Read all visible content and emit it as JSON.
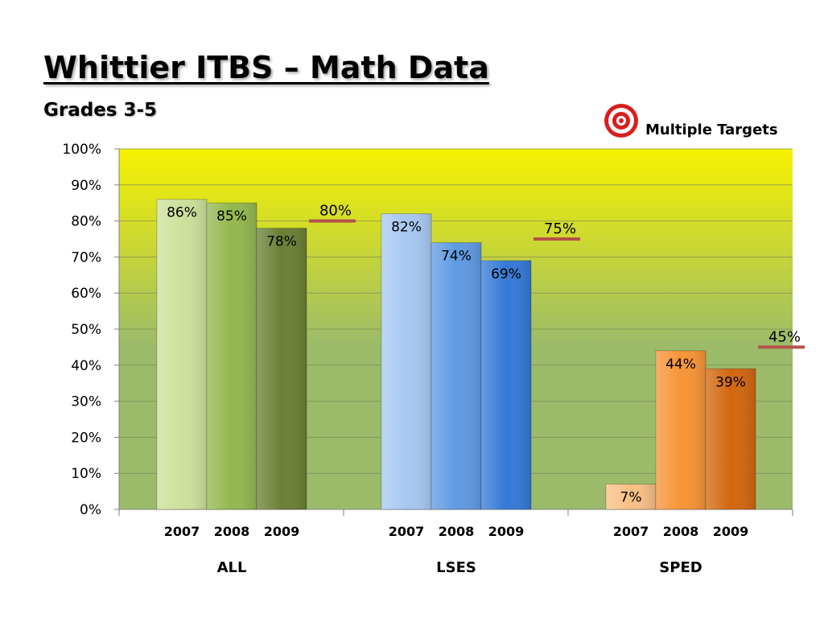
{
  "title": "Whittier ITBS – Math Data",
  "subtitle": "Grades 3-5",
  "legend": {
    "icon": "target-icon",
    "label": "Multiple Targets"
  },
  "chart_data": {
    "type": "bar",
    "ylim": [
      0,
      100
    ],
    "yticks": [
      "0%",
      "10%",
      "20%",
      "30%",
      "40%",
      "50%",
      "60%",
      "70%",
      "80%",
      "90%",
      "100%"
    ],
    "grid": true,
    "groups": [
      {
        "name": "ALL",
        "years": [
          "2007",
          "2008",
          "2009"
        ],
        "values": [
          86,
          85,
          78
        ],
        "labels": [
          "86%",
          "85%",
          "78%"
        ],
        "colors": [
          "#cde09a",
          "#93b74f",
          "#6a7f35"
        ],
        "target": 80,
        "target_label": "80%"
      },
      {
        "name": "LSES",
        "years": [
          "2007",
          "2008",
          "2009"
        ],
        "values": [
          82,
          74,
          69
        ],
        "labels": [
          "82%",
          "74%",
          "69%"
        ],
        "colors": [
          "#a7c8f2",
          "#5f9ae2",
          "#3579d6"
        ],
        "target": 75,
        "target_label": "75%"
      },
      {
        "name": "SPED",
        "years": [
          "2007",
          "2008",
          "2009"
        ],
        "values": [
          7,
          44,
          39
        ],
        "labels": [
          "7%",
          "44%",
          "39%"
        ],
        "colors": [
          "#f9bf85",
          "#f79437",
          "#d2660f"
        ],
        "target": 45,
        "target_label": "45%"
      }
    ],
    "colors": {
      "background_top": "#f6f200",
      "background_bottom": "#9bbb6b",
      "target_line": "#b5524a"
    }
  }
}
